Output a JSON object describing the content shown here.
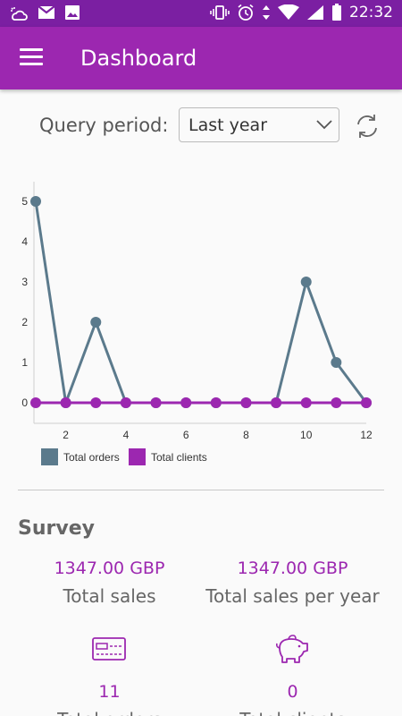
{
  "status_bar": {
    "time": "22:32"
  },
  "app_bar": {
    "title": "Dashboard"
  },
  "query": {
    "label": "Query period:",
    "selected": "Last year"
  },
  "chart_data": {
    "type": "line",
    "x": [
      1,
      2,
      3,
      4,
      5,
      6,
      7,
      8,
      9,
      10,
      11,
      12
    ],
    "x_ticks": [
      2,
      4,
      6,
      8,
      10,
      12
    ],
    "y_ticks": [
      0,
      1,
      2,
      3,
      4,
      5
    ],
    "ylim": [
      0,
      5
    ],
    "xlim": [
      1,
      12
    ],
    "grid": false,
    "legend": "bottom-left",
    "series": [
      {
        "name": "Total orders",
        "color": "#5b7a8c",
        "values": [
          5,
          0,
          2,
          0,
          0,
          0,
          0,
          0,
          0,
          3,
          1,
          0
        ]
      },
      {
        "name": "Total clients",
        "color": "#9c27b0",
        "values": [
          0,
          0,
          0,
          0,
          0,
          0,
          0,
          0,
          0,
          0,
          0,
          0
        ]
      }
    ]
  },
  "survey": {
    "title": "Survey",
    "total_sales": {
      "value": "1347.00 GBP",
      "label": "Total sales"
    },
    "total_sales_per_year": {
      "value": "1347.00 GBP",
      "label": "Total sales per year"
    },
    "total_orders": {
      "value": "11",
      "label": "Total orders",
      "icon": "credit-card-icon"
    },
    "total_clients": {
      "value": "0",
      "label": "Total clients",
      "icon": "piggy-bank-icon"
    }
  }
}
